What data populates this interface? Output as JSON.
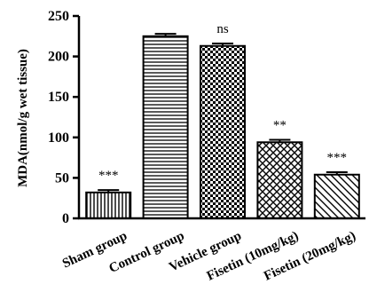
{
  "chart_data": {
    "type": "bar",
    "title": "",
    "xlabel": "",
    "ylabel": "MDA(nmol/g wet tissue)",
    "ylim": [
      0,
      250
    ],
    "yticks": [
      0,
      50,
      100,
      150,
      200,
      250
    ],
    "grid": false,
    "categories": [
      "Sham group",
      "Control group",
      "Vehicle group",
      "Fisetin (10mg/kg)",
      "Fisetin (20mg/kg)"
    ],
    "values": [
      32,
      225,
      213,
      94,
      54
    ],
    "errors": [
      3,
      3,
      3,
      3,
      3
    ],
    "annotations": [
      "***",
      "",
      "ns",
      "**",
      "***"
    ],
    "patterns": [
      "vertical-lines",
      "horizontal-lines",
      "checkerboard",
      "crosshatch",
      "diagonal-lines"
    ]
  }
}
